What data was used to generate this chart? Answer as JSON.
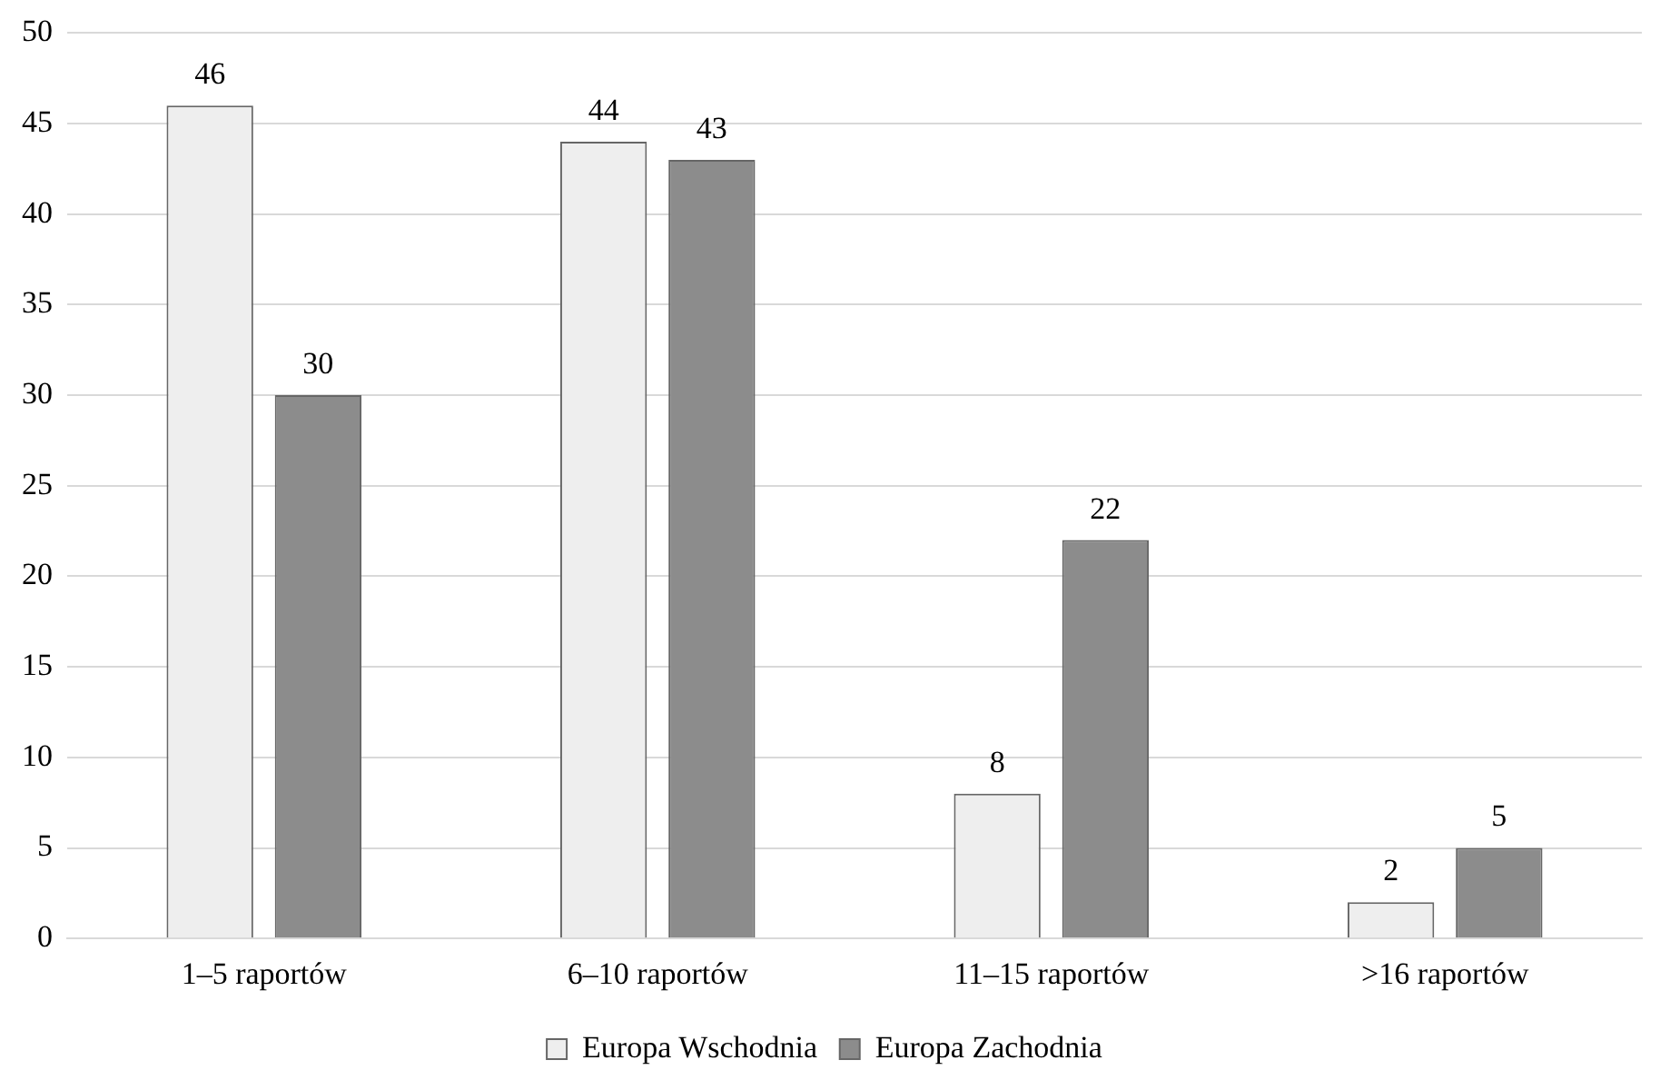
{
  "chart_data": {
    "type": "bar",
    "categories": [
      "1–5 raportów",
      "6–10 raportów",
      "11–15 raportów",
      ">16 raportów"
    ],
    "series": [
      {
        "name": "Europa Wschodnia",
        "color": "#eeeeee",
        "values": [
          46,
          44,
          8,
          2
        ]
      },
      {
        "name": "Europa Zachodnia",
        "color": "#8c8c8c",
        "values": [
          30,
          43,
          22,
          5
        ]
      }
    ],
    "ylim": [
      0,
      50
    ],
    "yticks": [
      0,
      5,
      10,
      15,
      20,
      25,
      30,
      35,
      40,
      45,
      50
    ],
    "grid": "y",
    "legend": "bottom",
    "data_labels": true
  }
}
